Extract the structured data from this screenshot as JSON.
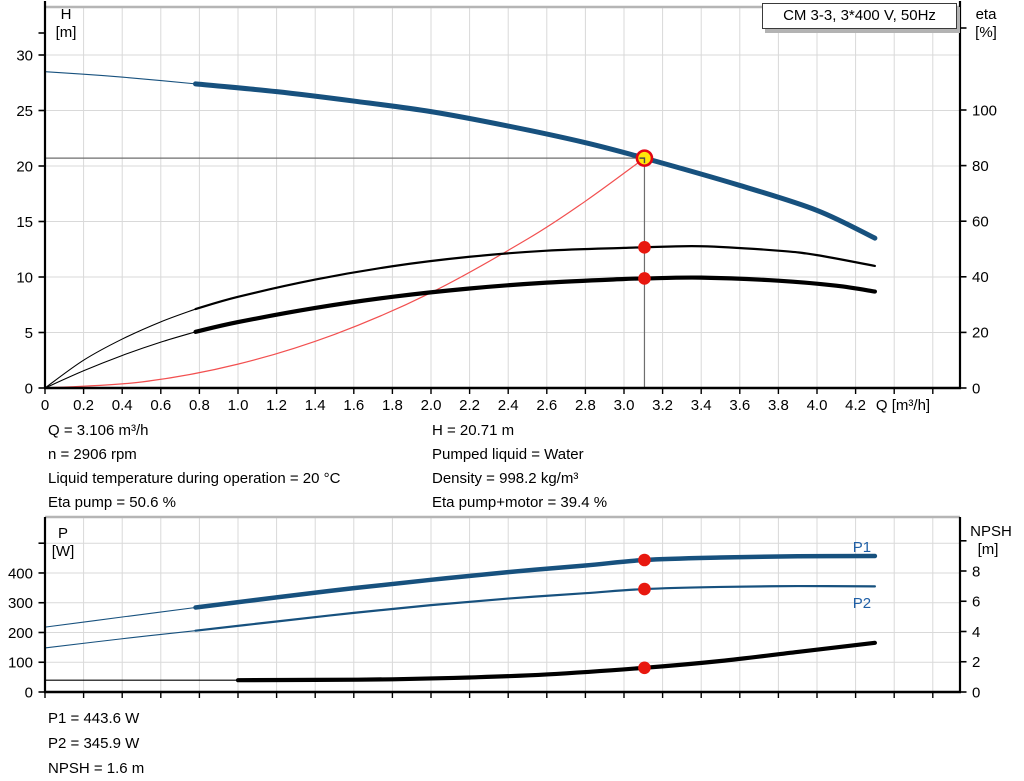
{
  "title": "CM 3-3, 3*400 V, 50Hz",
  "info_top_left": [
    "Q = 3.106 m³/h",
    "n = 2906 rpm",
    "Liquid temperature during operation = 20 °C",
    "Eta pump = 50.6 %"
  ],
  "info_top_right": [
    "H = 20.71 m",
    "Pumped liquid = Water",
    "Density = 998.2 kg/m³",
    "Eta pump+motor = 39.4 %"
  ],
  "info_bottom": [
    "P1 = 443.6 W",
    "P2 = 345.9 W",
    "NPSH = 1.6 m"
  ],
  "colors": {
    "curve_blue": "#17517e",
    "curve_black": "#000000",
    "system_curve_red": "#f25050",
    "dot_red": "#e8180f",
    "duty_fill_yellow": "#ffe60a",
    "duty_ring_red": "#e30613",
    "grid": "#d9d9d9",
    "chart_top_border": "#b5b5b5",
    "crosshair": "#6e6e6e",
    "axis": "#000000",
    "series_label_blue": "#1f5fa6",
    "text": "#000000"
  },
  "chart_data": [
    {
      "id": "head-efficiency-chart",
      "type": "line",
      "title": "CM 3-3, 3*400 V, 50Hz",
      "x": {
        "label": "Q [m³/h]",
        "range": [
          0,
          4.74
        ],
        "tick_step": 0.2,
        "tick_labels": [
          "0",
          "0.2",
          "0.4",
          "0.6",
          "0.8",
          "1.0",
          "1.2",
          "1.4",
          "1.6",
          "1.8",
          "2.0",
          "2.2",
          "2.4",
          "2.6",
          "2.8",
          "3.0",
          "3.2",
          "3.4",
          "3.6",
          "3.8",
          "4.0",
          "4.2"
        ]
      },
      "y_left": {
        "label_top": "H",
        "label_unit": "[m]",
        "ticks": [
          0,
          5,
          10,
          15,
          20,
          25,
          30
        ],
        "range": [
          0,
          34.3
        ]
      },
      "y_right": {
        "label_top": "eta",
        "label_unit": "[%]",
        "ticks": [
          0,
          20,
          40,
          60,
          80,
          100
        ],
        "range": [
          0,
          137
        ]
      },
      "grid": true,
      "legend_position": "none",
      "series": [
        {
          "name": "pump-head-curve",
          "axis": "left",
          "color": "#17517e",
          "width": 5,
          "thin_until": 0.78,
          "points": [
            [
              0,
              28.5
            ],
            [
              0.3,
              28.15
            ],
            [
              0.6,
              27.7
            ],
            [
              0.78,
              27.4
            ],
            [
              1.2,
              26.7
            ],
            [
              1.6,
              25.85
            ],
            [
              2.0,
              24.9
            ],
            [
              2.4,
              23.6
            ],
            [
              2.8,
              22.1
            ],
            [
              3.106,
              20.71
            ],
            [
              3.6,
              18.25
            ],
            [
              4.0,
              16.0
            ],
            [
              4.3,
              13.5
            ]
          ]
        },
        {
          "name": "system-curve",
          "axis": "left",
          "color": "#f25050",
          "width": 1.2,
          "thin_until": 0,
          "points": [
            [
              0,
              0
            ],
            [
              0.5,
              0.54
            ],
            [
              1.0,
              2.15
            ],
            [
              1.5,
              4.83
            ],
            [
              2.0,
              8.59
            ],
            [
              2.5,
              13.42
            ],
            [
              2.8,
              16.83
            ],
            [
              3.106,
              20.71
            ]
          ]
        },
        {
          "name": "eta-pump-curve",
          "axis": "right",
          "color": "#000000",
          "width": 2.2,
          "thin_until": 0.78,
          "points": [
            [
              0,
              0
            ],
            [
              0.2,
              10
            ],
            [
              0.4,
              17.6
            ],
            [
              0.6,
              23.8
            ],
            [
              0.78,
              28.4
            ],
            [
              1.0,
              32.8
            ],
            [
              1.4,
              39.0
            ],
            [
              1.8,
              43.8
            ],
            [
              2.2,
              47.2
            ],
            [
              2.6,
              49.4
            ],
            [
              3.0,
              50.4
            ],
            [
              3.106,
              50.6
            ],
            [
              3.4,
              51.0
            ],
            [
              3.8,
              49.4
            ],
            [
              4.0,
              47.8
            ],
            [
              4.3,
              43.9
            ]
          ]
        },
        {
          "name": "eta-pump-motor-curve",
          "axis": "right",
          "color": "#000000",
          "width": 4.2,
          "thin_until": 0.78,
          "points": [
            [
              0,
              0
            ],
            [
              0.2,
              6.2
            ],
            [
              0.4,
              11.7
            ],
            [
              0.6,
              16.5
            ],
            [
              0.78,
              20.2
            ],
            [
              1.0,
              23.7
            ],
            [
              1.4,
              28.8
            ],
            [
              1.8,
              32.8
            ],
            [
              2.2,
              35.8
            ],
            [
              2.6,
              37.9
            ],
            [
              3.0,
              39.2
            ],
            [
              3.106,
              39.4
            ],
            [
              3.4,
              39.7
            ],
            [
              3.8,
              38.6
            ],
            [
              4.1,
              36.8
            ],
            [
              4.3,
              34.7
            ]
          ]
        }
      ],
      "duty_point": {
        "q": 3.106,
        "h": 20.71
      },
      "dots": [
        {
          "q": 3.106,
          "value": 50.6,
          "axis": "right"
        },
        {
          "q": 3.106,
          "value": 39.4,
          "axis": "right"
        }
      ]
    },
    {
      "id": "power-npsh-chart",
      "type": "line",
      "x": {
        "label": "",
        "range": [
          0,
          4.74
        ],
        "tick_step": 0.2,
        "tick_labels": []
      },
      "y_left": {
        "label_top": "P",
        "label_unit": "[W]",
        "ticks": [
          0,
          100,
          200,
          300,
          400
        ],
        "range": [
          0,
          588
        ]
      },
      "y_right": {
        "label_top": "NPSH",
        "label_unit": "[m]",
        "ticks": [
          0,
          2,
          4,
          6,
          8
        ],
        "range": [
          0,
          11.6
        ]
      },
      "grid": true,
      "legend_position": "inline",
      "series": [
        {
          "name": "P1-power-curve",
          "axis": "left",
          "color": "#17517e",
          "width": 4.5,
          "thin_until": 0.78,
          "label": "P1",
          "points": [
            [
              0,
              218
            ],
            [
              0.4,
              252
            ],
            [
              0.78,
              284
            ],
            [
              1.2,
              318
            ],
            [
              1.6,
              349
            ],
            [
              2.0,
              377
            ],
            [
              2.4,
              403
            ],
            [
              2.8,
              425
            ],
            [
              3.106,
              443.6
            ],
            [
              3.5,
              452
            ],
            [
              3.9,
              456
            ],
            [
              4.3,
              457
            ]
          ]
        },
        {
          "name": "P2-power-curve",
          "axis": "left",
          "color": "#17517e",
          "width": 2.2,
          "thin_until": 0.78,
          "label": "P2",
          "points": [
            [
              0,
              148
            ],
            [
              0.4,
              179
            ],
            [
              0.78,
              206
            ],
            [
              1.2,
              237
            ],
            [
              1.6,
              266
            ],
            [
              2.0,
              292
            ],
            [
              2.4,
              314
            ],
            [
              2.8,
              332
            ],
            [
              3.106,
              345.9
            ],
            [
              3.5,
              353
            ],
            [
              3.9,
              356
            ],
            [
              4.3,
              355
            ]
          ]
        },
        {
          "name": "NPSH-curve",
          "axis": "right",
          "color": "#000000",
          "width": 4.2,
          "thin_until": 0.78,
          "points": [
            [
              0,
              0.78
            ],
            [
              0.6,
              0.78
            ],
            [
              1.0,
              0.78
            ],
            [
              1.4,
              0.8
            ],
            [
              1.8,
              0.84
            ],
            [
              2.2,
              0.96
            ],
            [
              2.6,
              1.16
            ],
            [
              3.106,
              1.6
            ],
            [
              3.5,
              2.05
            ],
            [
              3.9,
              2.65
            ],
            [
              4.3,
              3.25
            ]
          ]
        }
      ],
      "series_labels": [
        {
          "text": "P1",
          "q": 4.233,
          "value": 487,
          "axis": "left"
        },
        {
          "text": "P2",
          "q": 4.233,
          "value": 299,
          "axis": "left"
        }
      ],
      "dots": [
        {
          "q": 3.106,
          "value": 443.6,
          "axis": "left"
        },
        {
          "q": 3.106,
          "value": 345.9,
          "axis": "left"
        },
        {
          "q": 3.106,
          "value": 1.6,
          "axis": "right"
        }
      ]
    }
  ]
}
